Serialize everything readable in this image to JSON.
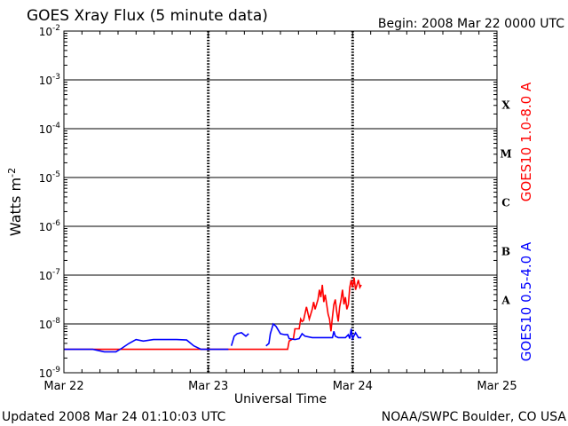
{
  "header": {
    "title": "GOES Xray Flux (5 minute data)",
    "begin": "Begin:  2008 Mar 22 0000 UTC"
  },
  "footer": {
    "updated": "Updated 2008 Mar 24 01:10:03 UTC",
    "credit": "NOAA/SWPC Boulder, CO USA"
  },
  "chart_data": {
    "type": "line",
    "title": "GOES Xray Flux (5 minute data)",
    "xlabel": "Universal Time",
    "ylabel": {
      "base": "Watts m",
      "sup": "-2"
    },
    "yscale": "log",
    "ylim": [
      1e-09,
      0.01
    ],
    "xlim_days": [
      0,
      3
    ],
    "x_ticks": [
      "Mar 22",
      "Mar 23",
      "Mar 24",
      "Mar 25"
    ],
    "y_ticks": [
      {
        "base": "10",
        "exp": "-9"
      },
      {
        "base": "10",
        "exp": "-8"
      },
      {
        "base": "10",
        "exp": "-7"
      },
      {
        "base": "10",
        "exp": "-6"
      },
      {
        "base": "10",
        "exp": "-5"
      },
      {
        "base": "10",
        "exp": "-4"
      },
      {
        "base": "10",
        "exp": "-3"
      },
      {
        "base": "10",
        "exp": "-2"
      }
    ],
    "flare_classes": [
      {
        "label": "A",
        "exp": -8
      },
      {
        "label": "B",
        "exp": -7
      },
      {
        "label": "C",
        "exp": -6
      },
      {
        "label": "M",
        "exp": -5
      },
      {
        "label": "X",
        "exp": -4
      }
    ],
    "grid": {
      "horizontal": true,
      "day_markers": true
    },
    "series": [
      {
        "name": "GOES10 1.0-8.0 A",
        "color": "#ff0000",
        "points": [
          [
            0.0,
            -8.52
          ],
          [
            0.3,
            -8.52
          ],
          [
            0.6,
            -8.52
          ],
          [
            0.9,
            -8.52
          ],
          [
            1.14,
            -8.52
          ],
          [
            1.2,
            -8.52
          ],
          [
            1.4,
            -8.52
          ],
          [
            1.55,
            -8.52
          ],
          [
            1.56,
            -8.35
          ],
          [
            1.59,
            -8.3
          ],
          [
            1.6,
            -8.1
          ],
          [
            1.63,
            -8.1
          ],
          [
            1.64,
            -7.9
          ],
          [
            1.65,
            -7.95
          ],
          [
            1.66,
            -7.93
          ],
          [
            1.68,
            -7.65
          ],
          [
            1.7,
            -7.9
          ],
          [
            1.72,
            -7.7
          ],
          [
            1.73,
            -7.55
          ],
          [
            1.74,
            -7.7
          ],
          [
            1.76,
            -7.5
          ],
          [
            1.77,
            -7.3
          ],
          [
            1.78,
            -7.45
          ],
          [
            1.79,
            -7.2
          ],
          [
            1.8,
            -7.55
          ],
          [
            1.81,
            -7.4
          ],
          [
            1.82,
            -7.6
          ],
          [
            1.83,
            -7.8
          ],
          [
            1.84,
            -7.9
          ],
          [
            1.85,
            -8.15
          ],
          [
            1.86,
            -7.85
          ],
          [
            1.87,
            -7.6
          ],
          [
            1.88,
            -7.5
          ],
          [
            1.89,
            -7.75
          ],
          [
            1.9,
            -7.95
          ],
          [
            1.91,
            -7.65
          ],
          [
            1.92,
            -7.5
          ],
          [
            1.93,
            -7.3
          ],
          [
            1.94,
            -7.6
          ],
          [
            1.95,
            -7.45
          ],
          [
            1.96,
            -7.7
          ],
          [
            1.97,
            -7.6
          ],
          [
            1.98,
            -7.25
          ],
          [
            1.99,
            -7.1
          ],
          [
            2.0,
            -7.25
          ],
          [
            2.01,
            -7.05
          ],
          [
            2.02,
            -7.3
          ],
          [
            2.03,
            -7.2
          ],
          [
            2.04,
            -7.1
          ],
          [
            2.05,
            -7.25
          ],
          [
            2.06,
            -7.2
          ]
        ]
      },
      {
        "name": "GOES10 0.5-4.0 A",
        "color": "#0000ff",
        "points": [
          [
            0.0,
            -8.52
          ],
          [
            0.2,
            -8.52
          ],
          [
            0.28,
            -8.57
          ],
          [
            0.36,
            -8.57
          ],
          [
            0.4,
            -8.5
          ],
          [
            0.45,
            -8.4
          ],
          [
            0.5,
            -8.32
          ],
          [
            0.55,
            -8.35
          ],
          [
            0.62,
            -8.32
          ],
          [
            0.7,
            -8.32
          ],
          [
            0.78,
            -8.32
          ],
          [
            0.85,
            -8.33
          ],
          [
            0.9,
            -8.45
          ],
          [
            0.95,
            -8.52
          ],
          [
            1.05,
            -8.52
          ],
          [
            1.14,
            -8.52
          ],
          null,
          [
            1.16,
            -8.45
          ],
          [
            1.18,
            -8.25
          ],
          [
            1.2,
            -8.2
          ],
          [
            1.23,
            -8.18
          ],
          [
            1.26,
            -8.25
          ],
          [
            1.28,
            -8.2
          ],
          null,
          [
            1.4,
            -8.45
          ],
          [
            1.42,
            -8.4
          ],
          [
            1.43,
            -8.2
          ],
          [
            1.45,
            -8.0
          ],
          [
            1.47,
            -8.05
          ],
          [
            1.5,
            -8.2
          ],
          [
            1.53,
            -8.22
          ],
          [
            1.55,
            -8.22
          ],
          [
            1.56,
            -8.3
          ],
          [
            1.6,
            -8.32
          ],
          [
            1.63,
            -8.3
          ],
          [
            1.65,
            -8.2
          ],
          [
            1.67,
            -8.25
          ],
          [
            1.72,
            -8.28
          ],
          [
            1.8,
            -8.28
          ],
          [
            1.86,
            -8.28
          ],
          [
            1.87,
            -8.15
          ],
          [
            1.88,
            -8.25
          ],
          [
            1.9,
            -8.28
          ],
          [
            1.95,
            -8.28
          ],
          [
            1.97,
            -8.22
          ],
          [
            1.98,
            -8.3
          ],
          [
            1.99,
            -8.1
          ],
          [
            2.0,
            -8.3
          ],
          [
            2.02,
            -8.18
          ],
          [
            2.04,
            -8.28
          ],
          [
            2.06,
            -8.28
          ]
        ]
      }
    ]
  }
}
